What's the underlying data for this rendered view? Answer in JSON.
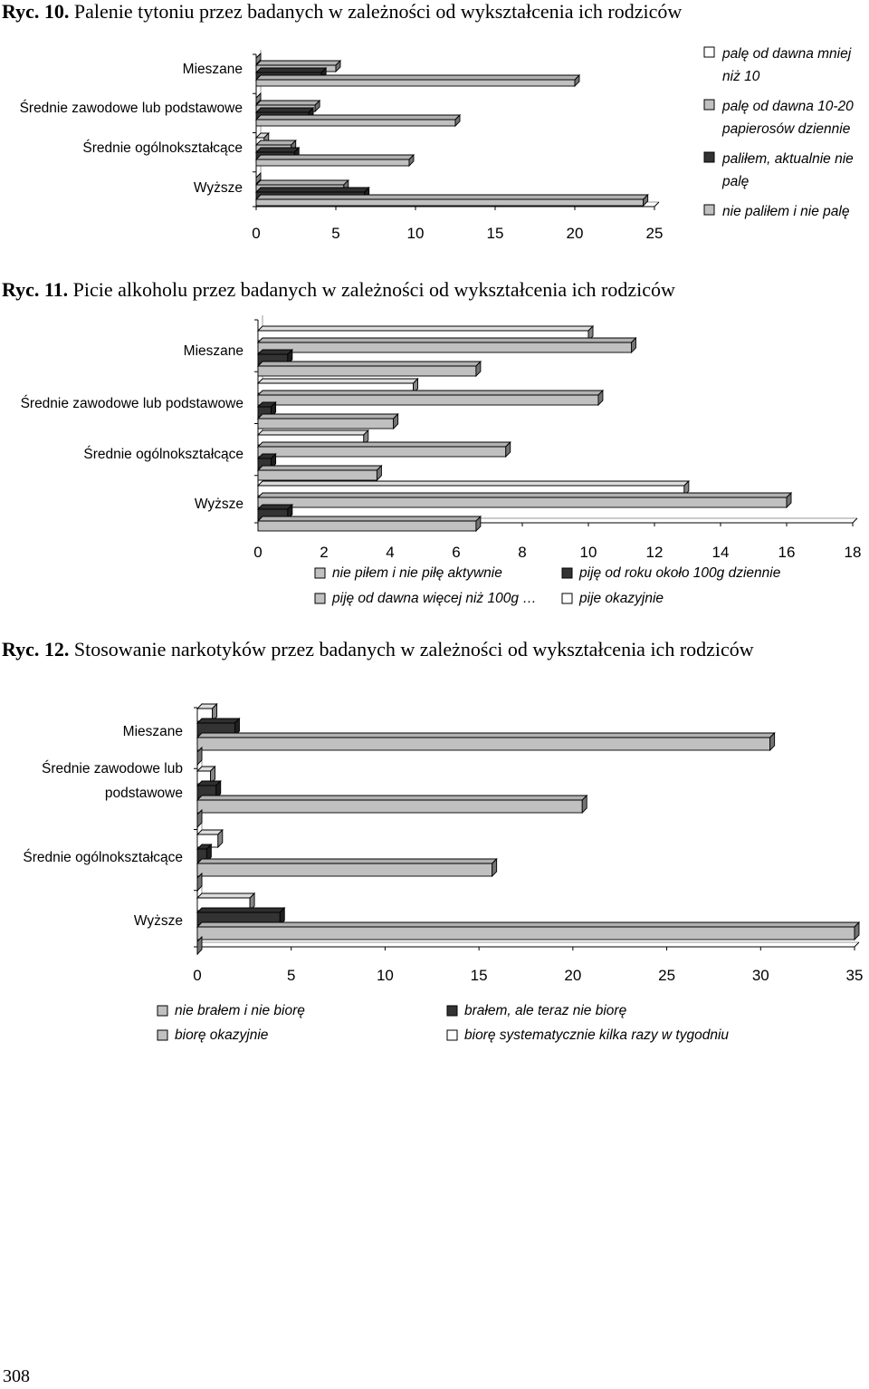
{
  "page_number": "308",
  "chart_data": [
    {
      "id": "ryc10",
      "type": "bar",
      "orientation": "horizontal",
      "caption_number": "Ryc. 10.",
      "title": "Palenie tytoniu przez badanych w zależności od wykształcenia ich rodziców",
      "categories": [
        "Mieszane",
        "Średnie zawodowe lub podstawowe",
        "Średnie ogólnokształcące",
        "Wyższe"
      ],
      "xticks": [
        "0",
        "5",
        "10",
        "15",
        "20",
        "25"
      ],
      "xlim": [
        0,
        25
      ],
      "legend_position": "right",
      "series": [
        {
          "name": "palę od dawna mniej niż 10",
          "legend_lines": [
            "palę od dawna mniej",
            "niż 10"
          ],
          "color": "#ffffff",
          "values": [
            0,
            0,
            0.5,
            0
          ]
        },
        {
          "name": "palę od dawna 10-20 papierosów dziennie",
          "legend_lines": [
            "palę od dawna 10-20",
            "papierosów dziennie"
          ],
          "color": "#c0c0c0",
          "values": [
            5,
            3.7,
            2.2,
            5.5
          ]
        },
        {
          "name": "paliłem, aktualnie nie palę",
          "legend_lines": [
            "paliłem, aktualnie nie",
            "palę"
          ],
          "color": "#333333",
          "values": [
            4.1,
            3.3,
            2.4,
            6.8
          ]
        },
        {
          "name": "nie paliłem i nie palę",
          "legend_lines": [
            "nie paliłem i nie palę"
          ],
          "color": "#c0c0c0",
          "values": [
            20,
            12.5,
            9.6,
            24.3
          ]
        }
      ]
    },
    {
      "id": "ryc11",
      "type": "bar",
      "orientation": "horizontal",
      "caption_number": "Ryc. 11.",
      "title": "Picie alkoholu przez badanych w zależności od wykształcenia ich rodziców",
      "categories": [
        "Mieszane",
        "Średnie zawodowe lub podstawowe",
        "Średnie ogólnokształcące",
        "Wyższe"
      ],
      "xticks": [
        "0",
        "2",
        "4",
        "6",
        "8",
        "10",
        "12",
        "14",
        "16",
        "18"
      ],
      "xlim": [
        0,
        18
      ],
      "legend_position": "bottom",
      "series": [
        {
          "name": "pije okazyjnie",
          "color": "#ffffff",
          "values": [
            10,
            4.7,
            3.2,
            12.9
          ]
        },
        {
          "name": "piję od dawna więcej niż 100g …",
          "color": "#c0c0c0",
          "values": [
            11.3,
            10.3,
            7.5,
            16
          ]
        },
        {
          "name": "piję od roku około 100g dziennie",
          "color": "#333333",
          "values": [
            0.9,
            0.4,
            0.4,
            0.9
          ]
        },
        {
          "name": "nie piłem i nie piłę aktywnie",
          "color": "#c0c0c0",
          "values": [
            6.6,
            4.1,
            3.6,
            6.6
          ]
        }
      ],
      "legend_order": [
        "nie piłem i nie piłę aktywnie",
        "piję od roku około 100g dziennie",
        "piję od dawna więcej niż 100g …",
        "pije okazyjnie"
      ]
    },
    {
      "id": "ryc12",
      "type": "bar",
      "orientation": "horizontal",
      "caption_number": "Ryc. 12.",
      "title": "Stosowanie narkotyków przez badanych w zależności od wykształcenia ich rodziców",
      "categories": [
        "Mieszane",
        "Średnie zawodowe lub podstawowe",
        "Średnie ogólnokształcące",
        "Wyższe"
      ],
      "category_label_lines": [
        [
          "Mieszane"
        ],
        [
          "Średnie zawodowe lub",
          "podstawowe"
        ],
        [
          "Średnie ogólnokształcące"
        ],
        [
          "Wyższe"
        ]
      ],
      "xticks": [
        "0",
        "5",
        "10",
        "15",
        "20",
        "25",
        "30",
        "35"
      ],
      "xlim": [
        0,
        35
      ],
      "legend_position": "bottom",
      "series": [
        {
          "name": "biorę systematycznie kilka razy w tygodniu",
          "color": "#ffffff",
          "values": [
            0.8,
            0.7,
            1.1,
            2.8
          ]
        },
        {
          "name": "brałem, ale teraz nie biorę",
          "color": "#333333",
          "values": [
            2,
            1,
            0.5,
            4.4
          ]
        },
        {
          "name": "biorę okazyjnie",
          "color": "#c0c0c0",
          "values": [
            30.5,
            20.5,
            15.7,
            35
          ]
        },
        {
          "name": "nie brałem i nie biorę",
          "color": "#c0c0c0",
          "values": [
            0,
            0,
            0,
            0
          ]
        }
      ],
      "legend_order": [
        "nie brałem i nie biorę",
        "brałem, ale teraz nie biorę",
        "biorę okazyjnie",
        "biorę systematycznie kilka razy w tygodniu"
      ]
    }
  ]
}
